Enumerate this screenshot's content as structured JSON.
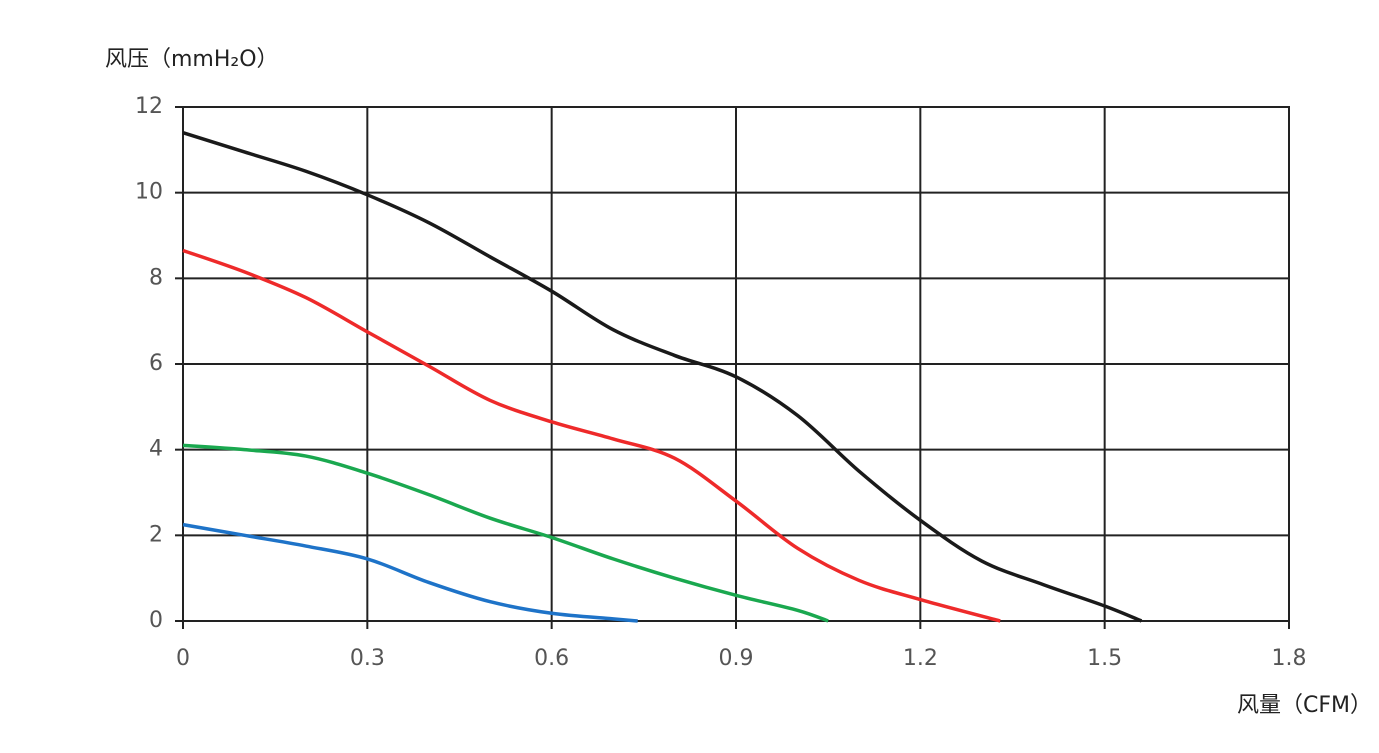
{
  "chart_data": {
    "type": "line",
    "ylabel": "风压（mmH₂O）",
    "xlabel": "风量（CFM）",
    "xlim": [
      0,
      1.8
    ],
    "xticks": [
      0,
      0.3,
      0.6,
      0.9,
      1.2,
      1.5,
      1.8
    ],
    "ylim": [
      0,
      12
    ],
    "yticks": [
      0,
      2,
      4,
      6,
      8,
      10,
      12
    ],
    "grid": true,
    "series": [
      {
        "color": "#1a1a1a",
        "x": [
          0,
          0.1,
          0.2,
          0.3,
          0.4,
          0.5,
          0.6,
          0.7,
          0.8,
          0.9,
          1.0,
          1.1,
          1.2,
          1.3,
          1.4,
          1.5,
          1.56
        ],
        "values": [
          11.4,
          10.95,
          10.5,
          9.95,
          9.3,
          8.5,
          7.7,
          6.8,
          6.2,
          5.7,
          4.8,
          3.5,
          2.35,
          1.4,
          0.85,
          0.35,
          0
        ]
      },
      {
        "color": "#ee2a2a",
        "x": [
          0,
          0.1,
          0.2,
          0.3,
          0.4,
          0.5,
          0.6,
          0.7,
          0.8,
          0.9,
          1.0,
          1.1,
          1.2,
          1.33
        ],
        "values": [
          8.65,
          8.15,
          7.55,
          6.75,
          5.95,
          5.15,
          4.65,
          4.25,
          3.8,
          2.8,
          1.7,
          0.95,
          0.5,
          0
        ]
      },
      {
        "color": "#1aa84f",
        "x": [
          0,
          0.1,
          0.2,
          0.3,
          0.4,
          0.5,
          0.6,
          0.7,
          0.8,
          0.9,
          1.0,
          1.05
        ],
        "values": [
          4.1,
          4.0,
          3.85,
          3.45,
          2.95,
          2.4,
          1.95,
          1.45,
          1.0,
          0.6,
          0.25,
          0
        ]
      },
      {
        "color": "#1e73c8",
        "x": [
          0,
          0.1,
          0.2,
          0.3,
          0.4,
          0.5,
          0.6,
          0.7,
          0.74
        ],
        "values": [
          2.25,
          2.0,
          1.75,
          1.45,
          0.9,
          0.45,
          0.18,
          0.05,
          0
        ]
      }
    ]
  }
}
